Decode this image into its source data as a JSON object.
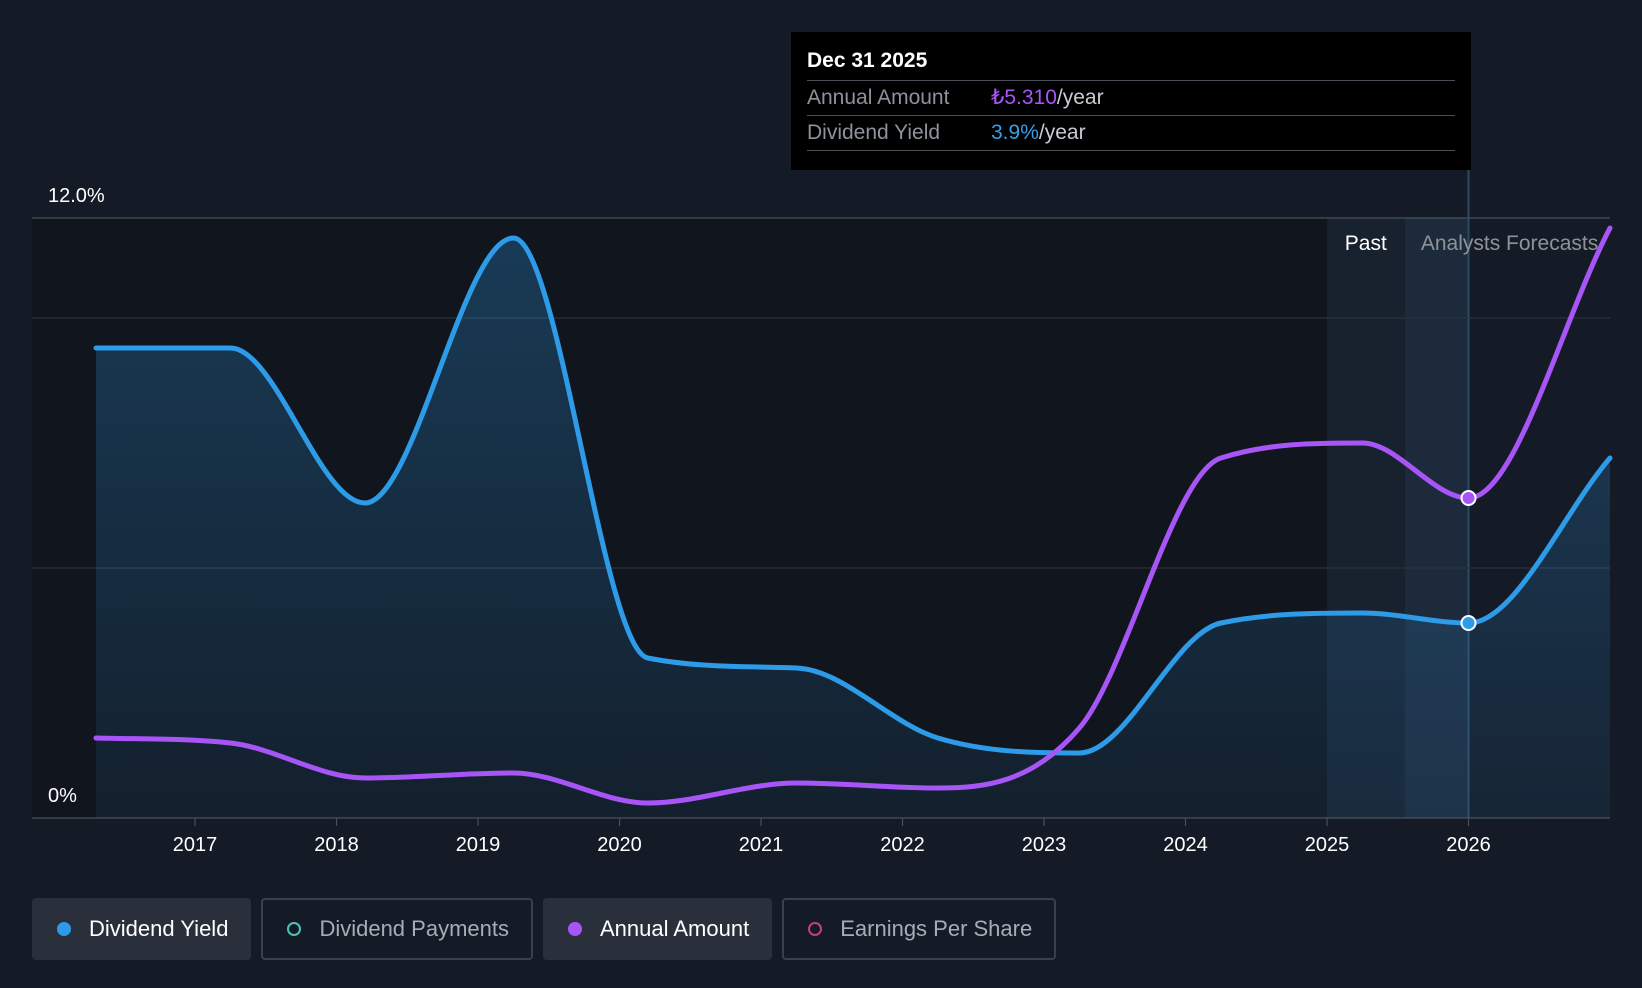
{
  "tooltip": {
    "date": "Dec 31 2025",
    "rows": [
      {
        "label": "Annual Amount",
        "value": "₺5.310",
        "unit": "/year"
      },
      {
        "label": "Dividend Yield",
        "value": "3.9%",
        "unit": "/year"
      }
    ]
  },
  "regions": {
    "past_label": "Past",
    "forecast_label": "Analysts Forecasts"
  },
  "legend": [
    {
      "label": "Dividend Yield",
      "color": "#2d9be8",
      "active": true,
      "marker": "filled"
    },
    {
      "label": "Dividend Payments",
      "color": "#4fc2b5",
      "active": false,
      "marker": "hollow"
    },
    {
      "label": "Annual Amount",
      "color": "#a855f7",
      "active": true,
      "marker": "filled"
    },
    {
      "label": "Earnings Per Share",
      "color": "#c2417a",
      "active": false,
      "marker": "hollow"
    }
  ],
  "chart_data": {
    "type": "line",
    "ylim": [
      0,
      12
    ],
    "y_tick_labels": [
      {
        "value": 12,
        "label": "12.0%"
      },
      {
        "value": 0,
        "label": "0%"
      }
    ],
    "gridlines": [
      12,
      10,
      5,
      0
    ],
    "xlim": [
      2016.3,
      2027.0
    ],
    "x_ticks": [
      2017,
      2018,
      2019,
      2020,
      2021,
      2022,
      2023,
      2024,
      2025,
      2026
    ],
    "past_forecast_boundary": 2025.55,
    "highlight_start": 2025.0,
    "hover_x": 2026.0,
    "series": [
      {
        "name": "Dividend Yield",
        "color": "#2d9be8",
        "area": true,
        "points": [
          [
            2016.3,
            9.4
          ],
          [
            2017.25,
            9.4
          ],
          [
            2018.2,
            6.3
          ],
          [
            2019.25,
            11.6
          ],
          [
            2020.2,
            3.2
          ],
          [
            2021.25,
            3.0
          ],
          [
            2022.25,
            1.6
          ],
          [
            2023.25,
            1.3
          ],
          [
            2024.25,
            3.9
          ],
          [
            2025.25,
            4.1
          ],
          [
            2026.0,
            3.9
          ],
          [
            2027.0,
            7.2
          ]
        ]
      },
      {
        "name": "Annual Amount",
        "color": "#a855f7",
        "area": false,
        "points": [
          [
            2016.3,
            1.6
          ],
          [
            2017.25,
            1.5
          ],
          [
            2018.2,
            0.8
          ],
          [
            2019.25,
            0.9
          ],
          [
            2020.2,
            0.3
          ],
          [
            2021.25,
            0.7
          ],
          [
            2022.25,
            0.6
          ],
          [
            2023.25,
            1.8
          ],
          [
            2024.25,
            7.2
          ],
          [
            2025.25,
            7.5
          ],
          [
            2026.0,
            6.4
          ],
          [
            2027.0,
            11.8
          ]
        ]
      }
    ]
  }
}
